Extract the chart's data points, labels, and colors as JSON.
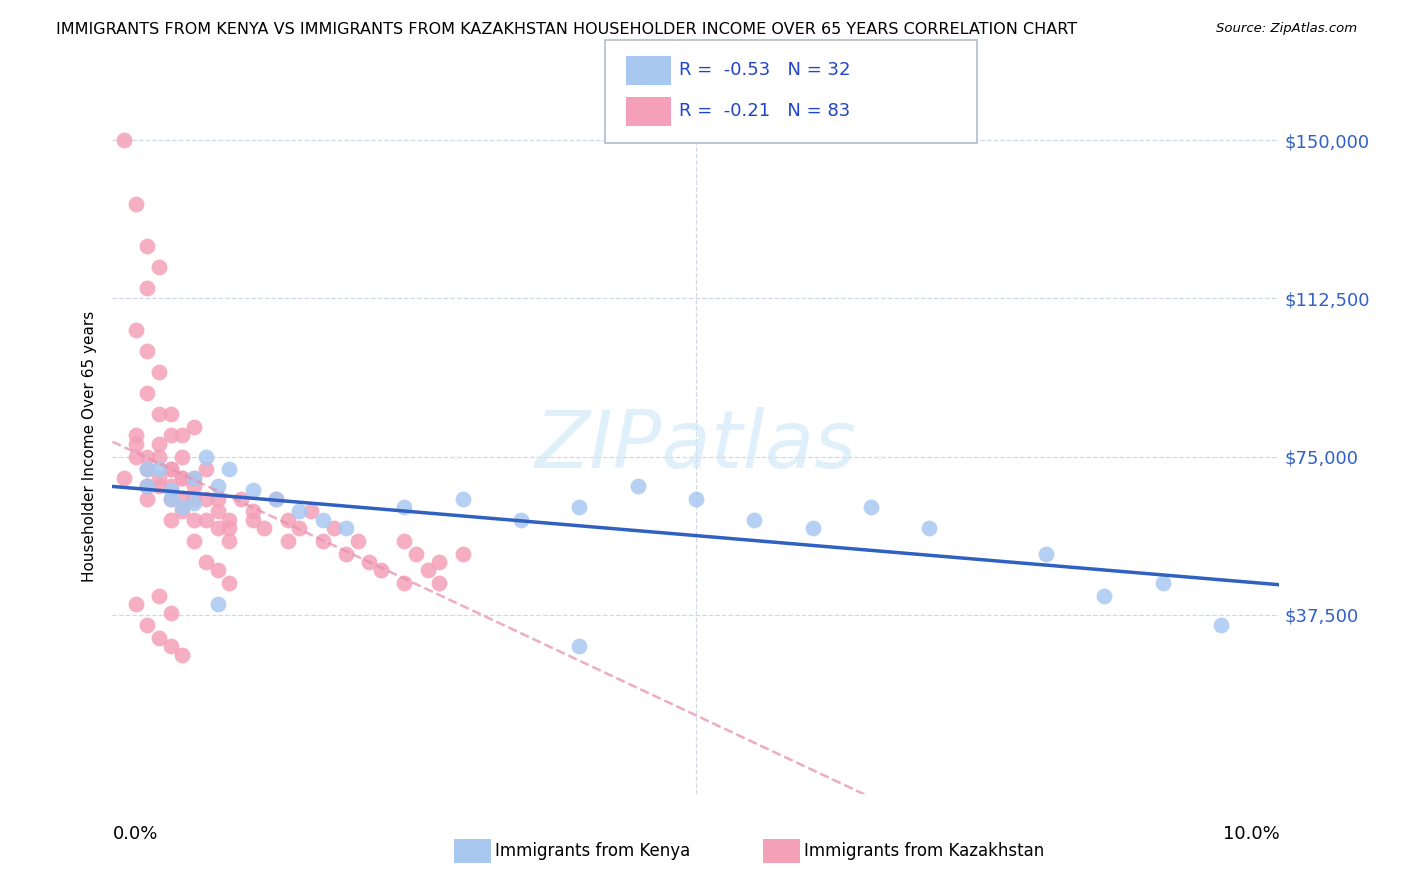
{
  "title": "IMMIGRANTS FROM KENYA VS IMMIGRANTS FROM KAZAKHSTAN HOUSEHOLDER INCOME OVER 65 YEARS CORRELATION CHART",
  "source": "Source: ZipAtlas.com",
  "ylabel": "Householder Income Over 65 years",
  "yticks": [
    0,
    37500,
    75000,
    112500,
    150000
  ],
  "ytick_labels": [
    "",
    "$37,500",
    "$75,000",
    "$112,500",
    "$150,000"
  ],
  "xlim": [
    0.0,
    0.1
  ],
  "ylim": [
    -5000,
    160000
  ],
  "kenya_color": "#a8c8f0",
  "kazakhstan_color": "#f4a0b8",
  "kenya_line_color": "#3060c0",
  "kazakhstan_line_color": "#e890b0",
  "kenya_R": -0.53,
  "kenya_N": 32,
  "kazakhstan_R": -0.21,
  "kazakhstan_N": 83,
  "kenya_scatter_x": [
    0.003,
    0.004,
    0.005,
    0.006,
    0.007,
    0.008,
    0.009,
    0.01,
    0.012,
    0.014,
    0.016,
    0.018,
    0.02,
    0.025,
    0.03,
    0.035,
    0.04,
    0.045,
    0.05,
    0.055,
    0.06,
    0.065,
    0.07,
    0.08,
    0.09,
    0.003,
    0.005,
    0.007,
    0.009,
    0.04,
    0.085,
    0.095
  ],
  "kenya_scatter_y": [
    68000,
    72000,
    65000,
    63000,
    70000,
    75000,
    68000,
    72000,
    67000,
    65000,
    62000,
    60000,
    58000,
    63000,
    65000,
    60000,
    63000,
    68000,
    65000,
    60000,
    58000,
    63000,
    58000,
    52000,
    45000,
    72000,
    67000,
    64000,
    40000,
    30000,
    42000,
    35000
  ],
  "kazakhstan_scatter_x": [
    0.001,
    0.002,
    0.002,
    0.003,
    0.003,
    0.003,
    0.004,
    0.004,
    0.004,
    0.005,
    0.005,
    0.005,
    0.005,
    0.006,
    0.006,
    0.006,
    0.006,
    0.007,
    0.007,
    0.007,
    0.007,
    0.008,
    0.008,
    0.008,
    0.009,
    0.009,
    0.009,
    0.01,
    0.01,
    0.01,
    0.011,
    0.012,
    0.012,
    0.013,
    0.014,
    0.015,
    0.015,
    0.016,
    0.017,
    0.018,
    0.019,
    0.02,
    0.021,
    0.022,
    0.023,
    0.025,
    0.026,
    0.027,
    0.028,
    0.03,
    0.001,
    0.002,
    0.003,
    0.004,
    0.003,
    0.002,
    0.003,
    0.004,
    0.005,
    0.006,
    0.007,
    0.003,
    0.004,
    0.005,
    0.002,
    0.003,
    0.004,
    0.005,
    0.006,
    0.003,
    0.002,
    0.004,
    0.005,
    0.003,
    0.004,
    0.005,
    0.006,
    0.007,
    0.008,
    0.009,
    0.01,
    0.028,
    0.025
  ],
  "kazakhstan_scatter_y": [
    70000,
    75000,
    80000,
    68000,
    72000,
    65000,
    75000,
    70000,
    68000,
    72000,
    65000,
    60000,
    68000,
    70000,
    65000,
    62000,
    75000,
    65000,
    70000,
    60000,
    68000,
    65000,
    72000,
    60000,
    65000,
    58000,
    62000,
    60000,
    55000,
    58000,
    65000,
    60000,
    62000,
    58000,
    65000,
    60000,
    55000,
    58000,
    62000,
    55000,
    58000,
    52000,
    55000,
    50000,
    48000,
    55000,
    52000,
    48000,
    45000,
    52000,
    150000,
    135000,
    125000,
    120000,
    115000,
    105000,
    100000,
    95000,
    85000,
    80000,
    82000,
    90000,
    85000,
    80000,
    78000,
    75000,
    78000,
    72000,
    70000,
    68000,
    40000,
    42000,
    38000,
    35000,
    32000,
    30000,
    28000,
    55000,
    50000,
    48000,
    45000,
    50000,
    45000
  ],
  "grid_color": "#d0d8e8",
  "watermark_color": "#d0e8f8",
  "title_fontsize": 11.5,
  "tick_label_fontsize": 13,
  "axis_label_fontsize": 11
}
